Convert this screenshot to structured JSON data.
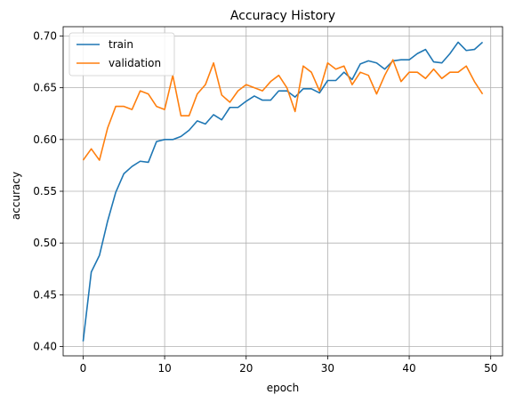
{
  "chart_data": {
    "type": "line",
    "title": "Accuracy History",
    "xlabel": "epoch",
    "ylabel": "accuracy",
    "xlim": [
      -2.45,
      51.45
    ],
    "ylim": [
      0.391,
      0.709
    ],
    "xticks": [
      0,
      10,
      20,
      30,
      40,
      50
    ],
    "yticks": [
      0.4,
      0.45,
      0.5,
      0.55,
      0.6,
      0.65,
      0.7
    ],
    "ytick_labels": [
      "0.40",
      "0.45",
      "0.50",
      "0.55",
      "0.60",
      "0.65",
      "0.70"
    ],
    "grid": true,
    "legend_position": "top-left",
    "x": [
      0,
      1,
      2,
      3,
      4,
      5,
      6,
      7,
      8,
      9,
      10,
      11,
      12,
      13,
      14,
      15,
      16,
      17,
      18,
      19,
      20,
      21,
      22,
      23,
      24,
      25,
      26,
      27,
      28,
      29,
      30,
      31,
      32,
      33,
      34,
      35,
      36,
      37,
      38,
      39,
      40,
      41,
      42,
      43,
      44,
      45,
      46,
      47,
      48,
      49
    ],
    "series": [
      {
        "name": "train",
        "color": "#1f77b4",
        "values": [
          0.405,
          0.472,
          0.488,
          0.521,
          0.549,
          0.567,
          0.574,
          0.579,
          0.578,
          0.598,
          0.6,
          0.6,
          0.603,
          0.609,
          0.618,
          0.615,
          0.624,
          0.619,
          0.631,
          0.631,
          0.637,
          0.642,
          0.638,
          0.638,
          0.647,
          0.647,
          0.641,
          0.649,
          0.649,
          0.645,
          0.657,
          0.657,
          0.665,
          0.658,
          0.673,
          0.676,
          0.674,
          0.668,
          0.676,
          0.677,
          0.677,
          0.683,
          0.687,
          0.675,
          0.674,
          0.683,
          0.694,
          0.686,
          0.687,
          0.694
        ]
      },
      {
        "name": "validation",
        "color": "#ff7f0e",
        "values": [
          0.58,
          0.591,
          0.58,
          0.611,
          0.632,
          0.632,
          0.629,
          0.647,
          0.644,
          0.632,
          0.629,
          0.662,
          0.623,
          0.623,
          0.644,
          0.653,
          0.674,
          0.643,
          0.636,
          0.647,
          0.653,
          0.65,
          0.647,
          0.656,
          0.662,
          0.65,
          0.627,
          0.671,
          0.665,
          0.647,
          0.674,
          0.668,
          0.671,
          0.653,
          0.665,
          0.662,
          0.644,
          0.662,
          0.677,
          0.656,
          0.665,
          0.665,
          0.659,
          0.668,
          0.659,
          0.665,
          0.665,
          0.671,
          0.656,
          0.644
        ]
      }
    ]
  }
}
